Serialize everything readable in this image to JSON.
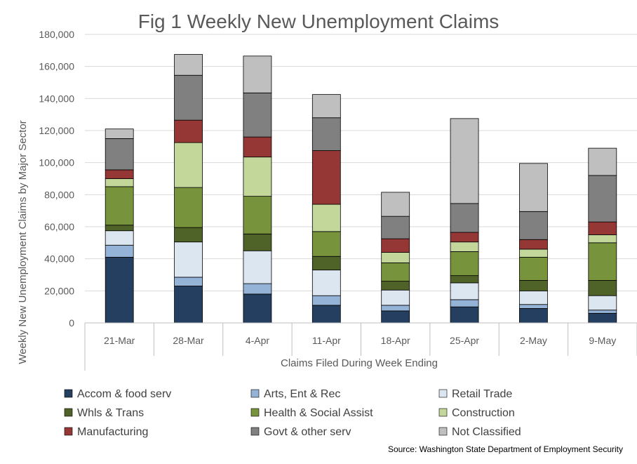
{
  "chart_data": {
    "type": "bar",
    "stacked": true,
    "title": "Fig 1 Weekly New Unemployment Claims",
    "xlabel": "Claims Filed During Week Ending",
    "ylabel": "Weekly New Unemployment Claims by Major Sector",
    "ylim": [
      0,
      180000
    ],
    "yticks": [
      "0",
      "20,000",
      "40,000",
      "60,000",
      "80,000",
      "100,000",
      "120,000",
      "140,000",
      "160,000",
      "180,000"
    ],
    "grid": true,
    "legend_position": "bottom",
    "categories": [
      "21-Mar",
      "28-Mar",
      "4-Apr",
      "11-Apr",
      "18-Apr",
      "25-Apr",
      "2-May",
      "9-May"
    ],
    "series": [
      {
        "name": "Accom & food serv",
        "color": "#243f60",
        "values": [
          41000,
          23000,
          18000,
          11000,
          7500,
          10000,
          9000,
          6000
        ]
      },
      {
        "name": "Arts, Ent & Rec",
        "color": "#95b3d7",
        "values": [
          7500,
          5500,
          6500,
          6000,
          3500,
          4500,
          2500,
          2000
        ]
      },
      {
        "name": "Retail Trade",
        "color": "#dce6f1",
        "values": [
          9000,
          22000,
          20500,
          16000,
          9500,
          10500,
          8500,
          9000
        ]
      },
      {
        "name": "Whls & Trans",
        "color": "#4f6228",
        "values": [
          3500,
          9000,
          10500,
          8500,
          5500,
          4500,
          6500,
          9500
        ]
      },
      {
        "name": "Health & Social Assist",
        "color": "#77933c",
        "values": [
          24000,
          25000,
          23500,
          15500,
          11500,
          15000,
          14500,
          23500
        ]
      },
      {
        "name": "Construction",
        "color": "#c4d79b",
        "values": [
          5000,
          28000,
          24500,
          17000,
          6500,
          6000,
          5000,
          5000
        ]
      },
      {
        "name": "Manufacturing",
        "color": "#953735",
        "values": [
          5500,
          14000,
          12500,
          33500,
          8500,
          6000,
          6000,
          8000
        ]
      },
      {
        "name": "Govt & other serv",
        "color": "#808080",
        "values": [
          19500,
          28000,
          27500,
          20500,
          14000,
          18000,
          17500,
          29000
        ]
      },
      {
        "name": "Not Classified",
        "color": "#bfbfbf",
        "values": [
          6000,
          13000,
          23000,
          14500,
          15000,
          53000,
          30000,
          17000
        ]
      }
    ],
    "source": "Source: Washington State Department of Employment Security"
  }
}
